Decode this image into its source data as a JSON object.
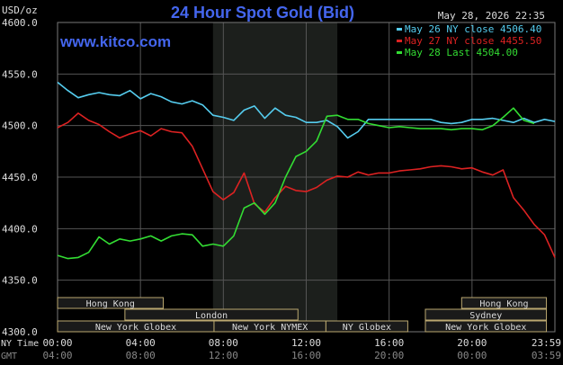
{
  "header": {
    "title": "24 Hour Spot Gold (Bid)",
    "unit": "USD/oz",
    "datetime": "May 28, 2026 22:35",
    "site": "www.kitco.com"
  },
  "colors": {
    "background": "#000000",
    "grid": "#555555",
    "text": "#dddddd",
    "title": "#4466ee",
    "highlight_band": "#1c1f1c",
    "session_fill": "#1a1a1a",
    "session_border": "#bba870"
  },
  "chart_data": {
    "type": "line",
    "title": "24 Hour Spot Gold (Bid)",
    "ylabel": "USD/oz",
    "ylim": [
      4300,
      4600
    ],
    "yticks": [
      "4600.0",
      "4550.0",
      "4500.0",
      "4450.0",
      "4400.0",
      "4350.0",
      "4300.0"
    ],
    "yticks_values": [
      4600,
      4550,
      4500,
      4450,
      4400,
      4350,
      4300
    ],
    "xlim": [
      0,
      24
    ],
    "grid": true,
    "legend_position": "top-right",
    "x_tick_values": [
      0,
      4,
      8,
      12,
      16,
      20,
      24
    ],
    "x_rows": [
      {
        "label": "NY Time",
        "ticks": [
          "00:00",
          "04:00",
          "08:00",
          "12:00",
          "16:00",
          "20:00",
          "23:59"
        ]
      },
      {
        "label": "GMT",
        "ticks": [
          "04:00",
          "08:00",
          "12:00",
          "16:00",
          "20:00",
          "00:00",
          "03:59"
        ]
      }
    ],
    "highlight_range": [
      7.5,
      13.5
    ],
    "series": [
      {
        "name": "May 26 NY close",
        "legend": "May 26 NY close 4506.40",
        "color": "#55ccee",
        "x": [
          0,
          0.5,
          1,
          1.5,
          2,
          2.5,
          3,
          3.5,
          4,
          4.5,
          5,
          5.5,
          6,
          6.5,
          7,
          7.5,
          8,
          8.5,
          9,
          9.5,
          10,
          10.5,
          11,
          11.5,
          12,
          12.5,
          13,
          13.5,
          14,
          14.5,
          15,
          15.5,
          16,
          16.5,
          17,
          17.5,
          18,
          18.5,
          19,
          19.5,
          20,
          20.5,
          21,
          21.5,
          22,
          22.5,
          23,
          23.5,
          24
        ],
        "y": [
          4542,
          4534,
          4527,
          4530,
          4532,
          4530,
          4529,
          4534,
          4526,
          4531,
          4528,
          4523,
          4521,
          4524,
          4520,
          4510,
          4508,
          4505,
          4515,
          4519,
          4507,
          4517,
          4510,
          4508,
          4503,
          4503,
          4505,
          4499,
          4488,
          4494,
          4506,
          4506,
          4506,
          4506,
          4506,
          4506,
          4506,
          4503,
          4502,
          4503,
          4506,
          4506,
          4507,
          4505,
          4503,
          4507,
          4503,
          4506,
          4504
        ]
      },
      {
        "name": "May 27 NY close",
        "legend": "May 27 NY close 4455.50",
        "color": "#dd2222",
        "x": [
          0,
          0.5,
          1,
          1.5,
          2,
          2.5,
          3,
          3.5,
          4,
          4.5,
          5,
          5.5,
          6,
          6.5,
          7,
          7.5,
          8,
          8.5,
          9,
          9.5,
          10,
          10.5,
          11,
          11.5,
          12,
          12.5,
          13,
          13.5,
          14,
          14.5,
          15,
          15.5,
          16,
          16.5,
          17,
          17.5,
          18,
          18.5,
          19,
          19.5,
          20,
          20.5,
          21,
          21.5,
          22,
          22.5,
          23,
          23.5,
          24
        ],
        "y": [
          4498,
          4503,
          4512,
          4505,
          4501,
          4494,
          4488,
          4492,
          4495,
          4490,
          4497,
          4494,
          4493,
          4480,
          4458,
          4436,
          4428,
          4435,
          4454,
          4424,
          4416,
          4430,
          4441,
          4437,
          4436,
          4440,
          4447,
          4451,
          4450,
          4455,
          4452,
          4454,
          4454,
          4456,
          4457,
          4458,
          4460,
          4461,
          4460,
          4458,
          4459,
          4455,
          4452,
          4457,
          4430,
          4418,
          4404,
          4394,
          4372
        ]
      },
      {
        "name": "May 28 Last",
        "legend": "May 28 Last 4504.00",
        "color": "#33dd33",
        "x": [
          0,
          0.5,
          1,
          1.5,
          2,
          2.5,
          3,
          3.5,
          4,
          4.5,
          5,
          5.5,
          6,
          6.5,
          7,
          7.5,
          8,
          8.5,
          9,
          9.5,
          10,
          10.5,
          11,
          11.5,
          12,
          12.5,
          13,
          13.5,
          14,
          14.5,
          15,
          15.5,
          16,
          16.5,
          17,
          17.5,
          18,
          18.5,
          19,
          19.5,
          20,
          20.5,
          21,
          21.5,
          22,
          22.5,
          23
        ],
        "y": [
          4374,
          4371,
          4372,
          4377,
          4392,
          4385,
          4390,
          4388,
          4390,
          4393,
          4388,
          4393,
          4395,
          4394,
          4383,
          4385,
          4383,
          4393,
          4420,
          4425,
          4414,
          4425,
          4450,
          4470,
          4475,
          4485,
          4509,
          4510,
          4506,
          4506,
          4502,
          4500,
          4498,
          4499,
          4498,
          4497,
          4497,
          4497,
          4496,
          4497,
          4497,
          4496,
          4500,
          4508,
          4517,
          4505,
          4502
        ]
      }
    ],
    "sessions": [
      {
        "name": "Hong Kong",
        "row": 0,
        "start": 0,
        "end": 5.1
      },
      {
        "name": "Hong Kong",
        "row": 0,
        "start": 19.5,
        "end": 23.59
      },
      {
        "name": "London",
        "row": 1,
        "start": 3.25,
        "end": 11.6
      },
      {
        "name": "Sydney",
        "row": 1,
        "start": 17.75,
        "end": 23.59
      },
      {
        "name": "New York Globex",
        "row": 2,
        "start": 0,
        "end": 7.55
      },
      {
        "name": "New York NYMEX",
        "row": 2,
        "start": 7.55,
        "end": 12.95
      },
      {
        "name": "NY Globex",
        "row": 2,
        "start": 12.95,
        "end": 16.9
      },
      {
        "name": "New York Globex",
        "row": 2,
        "start": 17.75,
        "end": 23.59
      }
    ]
  }
}
